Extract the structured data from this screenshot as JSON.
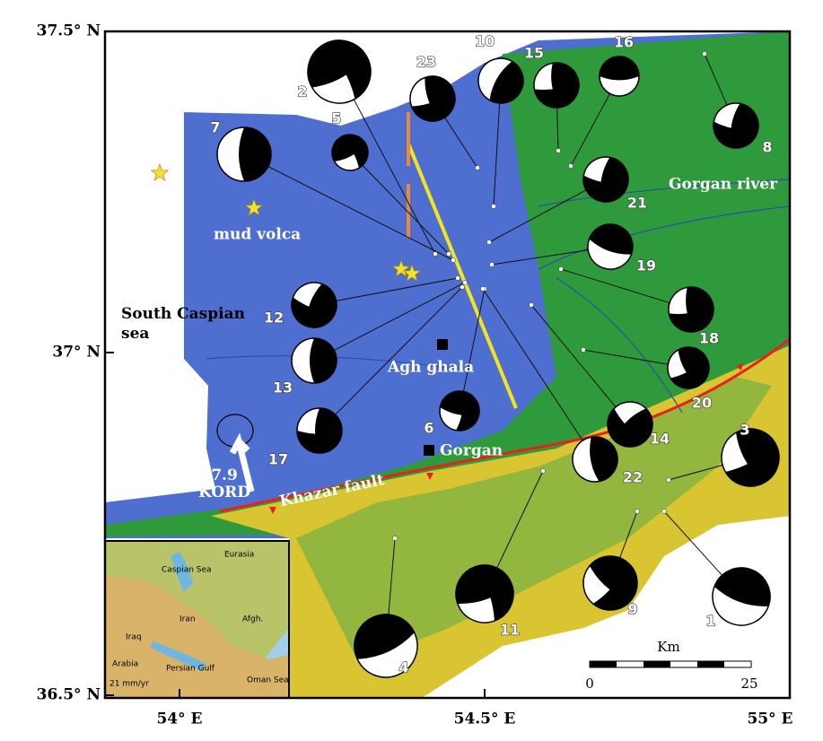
{
  "axes": {
    "lat": [
      "37.5° N",
      "37° N",
      "36.5° N"
    ],
    "lon": [
      "54° E",
      "54.5° E",
      "55° E"
    ]
  },
  "labels": {
    "sea": "South Caspian sea",
    "mud": "mud volca",
    "agh": "Agh ghala",
    "gorgan": "Gorgan",
    "river": "Gorgan river",
    "fault": "Khazar fault",
    "kord": "7.9 KORD"
  },
  "scale": {
    "unit": "Km",
    "start": "0",
    "end": "25"
  },
  "events": [
    "1",
    "2",
    "3",
    "4",
    "5",
    "6",
    "7",
    "8",
    "9",
    "10",
    "11",
    "12",
    "13",
    "14",
    "15",
    "16",
    "17",
    "18",
    "19",
    "20",
    "21",
    "22",
    "23"
  ],
  "inset": {
    "caspian": "Caspian Sea",
    "eurasia": "Eurasia",
    "iran": "Iran",
    "afgh": "Afgh.",
    "iraq": "Iraq",
    "arabia": "Arabia",
    "gulf": "Persian Gulf",
    "oman": "Oman Sea",
    "rate": "21 mm/yr"
  }
}
